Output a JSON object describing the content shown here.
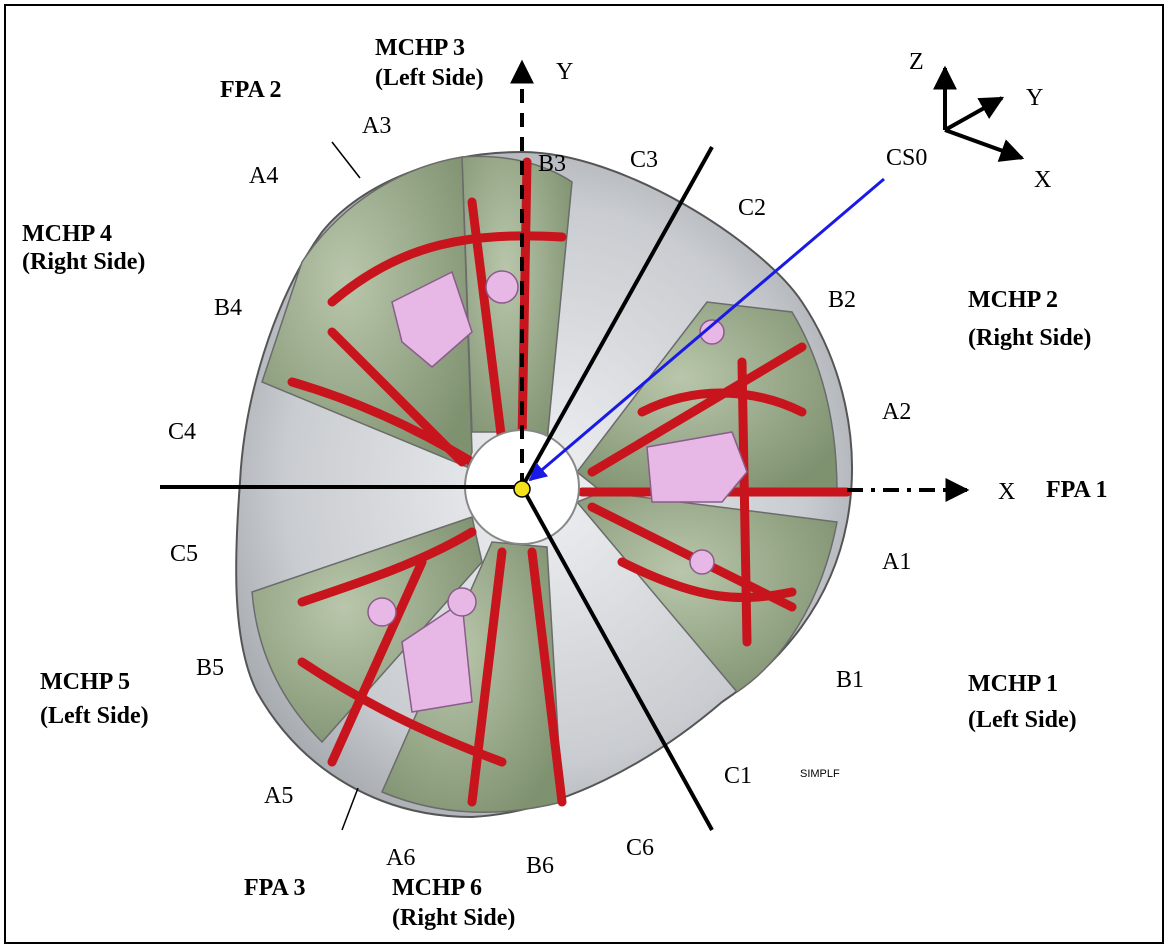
{
  "title_labels": {
    "mchp1": [
      "MCHP 1",
      "(Left Side)"
    ],
    "mchp2": [
      "MCHP 2",
      "(Right Side)"
    ],
    "mchp3": [
      "MCHP 3",
      "(Left Side)"
    ],
    "mchp4": [
      "MCHP 4",
      "(Right Side)"
    ],
    "mchp5": [
      "MCHP 5",
      "(Left Side)"
    ],
    "mchp6": [
      "MCHP 6",
      "(Right Side)"
    ],
    "fpa1": "FPA 1",
    "fpa2": "FPA 2",
    "fpa3": "FPA 3"
  },
  "point_labels": {
    "A1": "A1",
    "A2": "A2",
    "A3": "A3",
    "A4": "A4",
    "A5": "A5",
    "A6": "A6",
    "B1": "B1",
    "B2": "B2",
    "B3": "B3",
    "B4": "B4",
    "B5": "B5",
    "B6": "B6",
    "C1": "C1",
    "C2": "C2",
    "C3": "C3",
    "C4": "C4",
    "C5": "C5",
    "C6": "C6"
  },
  "axes": {
    "x": "X",
    "y": "Y",
    "triad_z": "Z",
    "triad_y": "Y",
    "triad_x": "X",
    "cs": "CS0"
  },
  "stamp": "SIMPLF",
  "colors": {
    "panel_green": "#8fa07f",
    "frame_red": "#c8141c",
    "metal_gray": "#c9ccd0",
    "hole_pink": "#e7b7e6",
    "origin_yellow": "#f4e21a",
    "cs_arrow_blue": "#1a1ae6"
  }
}
